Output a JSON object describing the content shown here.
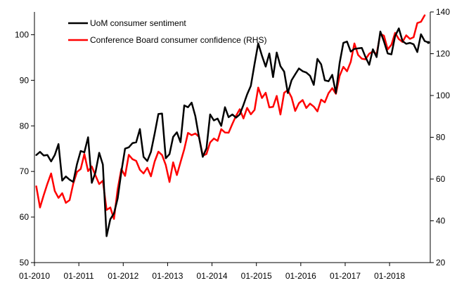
{
  "chart_data": {
    "type": "line",
    "title": "",
    "xlabel": "",
    "ylabel": "",
    "ylim": [
      50,
      105
    ],
    "y2lim": [
      20,
      140
    ],
    "y_ticks": [
      50,
      60,
      70,
      80,
      90,
      100
    ],
    "y2_ticks": [
      20,
      40,
      60,
      80,
      100,
      120,
      140
    ],
    "x_tick_labels": [
      "01-2010",
      "01-2011",
      "01-2012",
      "01-2013",
      "01-2014",
      "01-2015",
      "01-2016",
      "01-2017",
      "01-2018"
    ],
    "legend_position": "top-left",
    "grid": false,
    "start": "01-2010",
    "series": [
      {
        "name": "UoM consumer sentiment",
        "axis": "left",
        "color": "#000000",
        "values": [
          73.6,
          74.3,
          73.5,
          73.6,
          72.2,
          73.6,
          76.0,
          68.0,
          68.9,
          68.2,
          67.7,
          71.6,
          74.5,
          74.2,
          77.5,
          67.5,
          69.8,
          74.1,
          71.5,
          55.8,
          59.5,
          60.8,
          64.1,
          69.9,
          75.0,
          75.3,
          76.2,
          76.4,
          79.3,
          73.2,
          72.3,
          74.3,
          78.3,
          82.6,
          82.7,
          72.9,
          73.8,
          77.6,
          78.6,
          76.4,
          84.5,
          84.1,
          85.1,
          82.1,
          77.5,
          73.2,
          75.1,
          82.5,
          81.2,
          81.6,
          80.0,
          84.1,
          81.9,
          82.5,
          81.8,
          82.5,
          84.6,
          86.9,
          88.8,
          93.6,
          98.1,
          95.4,
          93.0,
          95.9,
          90.7,
          96.1,
          93.1,
          91.9,
          87.2,
          90.0,
          91.3,
          92.6,
          92.0,
          91.7,
          91.0,
          89.0,
          94.7,
          93.5,
          90.0,
          89.8,
          91.2,
          87.2,
          93.8,
          98.2,
          98.5,
          96.3,
          96.9,
          97.0,
          97.1,
          95.1,
          93.4,
          96.8,
          95.1,
          100.7,
          98.5,
          95.9,
          95.7,
          99.7,
          101.4,
          98.6,
          98.0,
          98.2,
          97.9,
          96.2,
          100.1,
          98.6,
          98.3
        ],
        "last_point_marker": true
      },
      {
        "name": "Conference Board consumer confidence (RHS)",
        "axis": "right",
        "color": "#ff0000",
        "values": [
          56.5,
          46.4,
          52.3,
          57.7,
          62.7,
          54.3,
          51.0,
          53.2,
          48.6,
          49.9,
          57.8,
          63.4,
          64.8,
          72.0,
          63.8,
          66.0,
          61.7,
          57.6,
          59.2,
          45.2,
          46.4,
          40.9,
          55.2,
          64.8,
          61.5,
          71.6,
          69.5,
          68.7,
          64.4,
          62.7,
          65.4,
          61.3,
          68.4,
          73.1,
          71.5,
          66.7,
          58.6,
          68.0,
          61.9,
          68.1,
          74.3,
          82.1,
          81.0,
          81.8,
          80.2,
          71.2,
          72.0,
          77.5,
          79.4,
          78.3,
          83.9,
          82.3,
          82.2,
          86.4,
          90.3,
          93.4,
          89.0,
          94.1,
          91.0,
          93.1,
          103.8,
          98.8,
          101.3,
          94.3,
          94.6,
          99.8,
          90.9,
          101.3,
          102.6,
          99.1,
          92.6,
          96.3,
          97.8,
          94.0,
          96.1,
          94.7,
          92.4,
          98.0,
          96.7,
          101.1,
          103.5,
          100.8,
          109.4,
          113.7,
          111.6,
          116.1,
          124.9,
          119.4,
          117.6,
          117.3,
          120.0,
          121.1,
          119.8,
          129.5,
          128.6,
          122.1,
          124.3,
          130.0,
          127.0,
          125.6,
          128.8,
          127.1,
          127.9,
          134.7,
          135.3,
          138.4
        ]
      }
    ]
  }
}
